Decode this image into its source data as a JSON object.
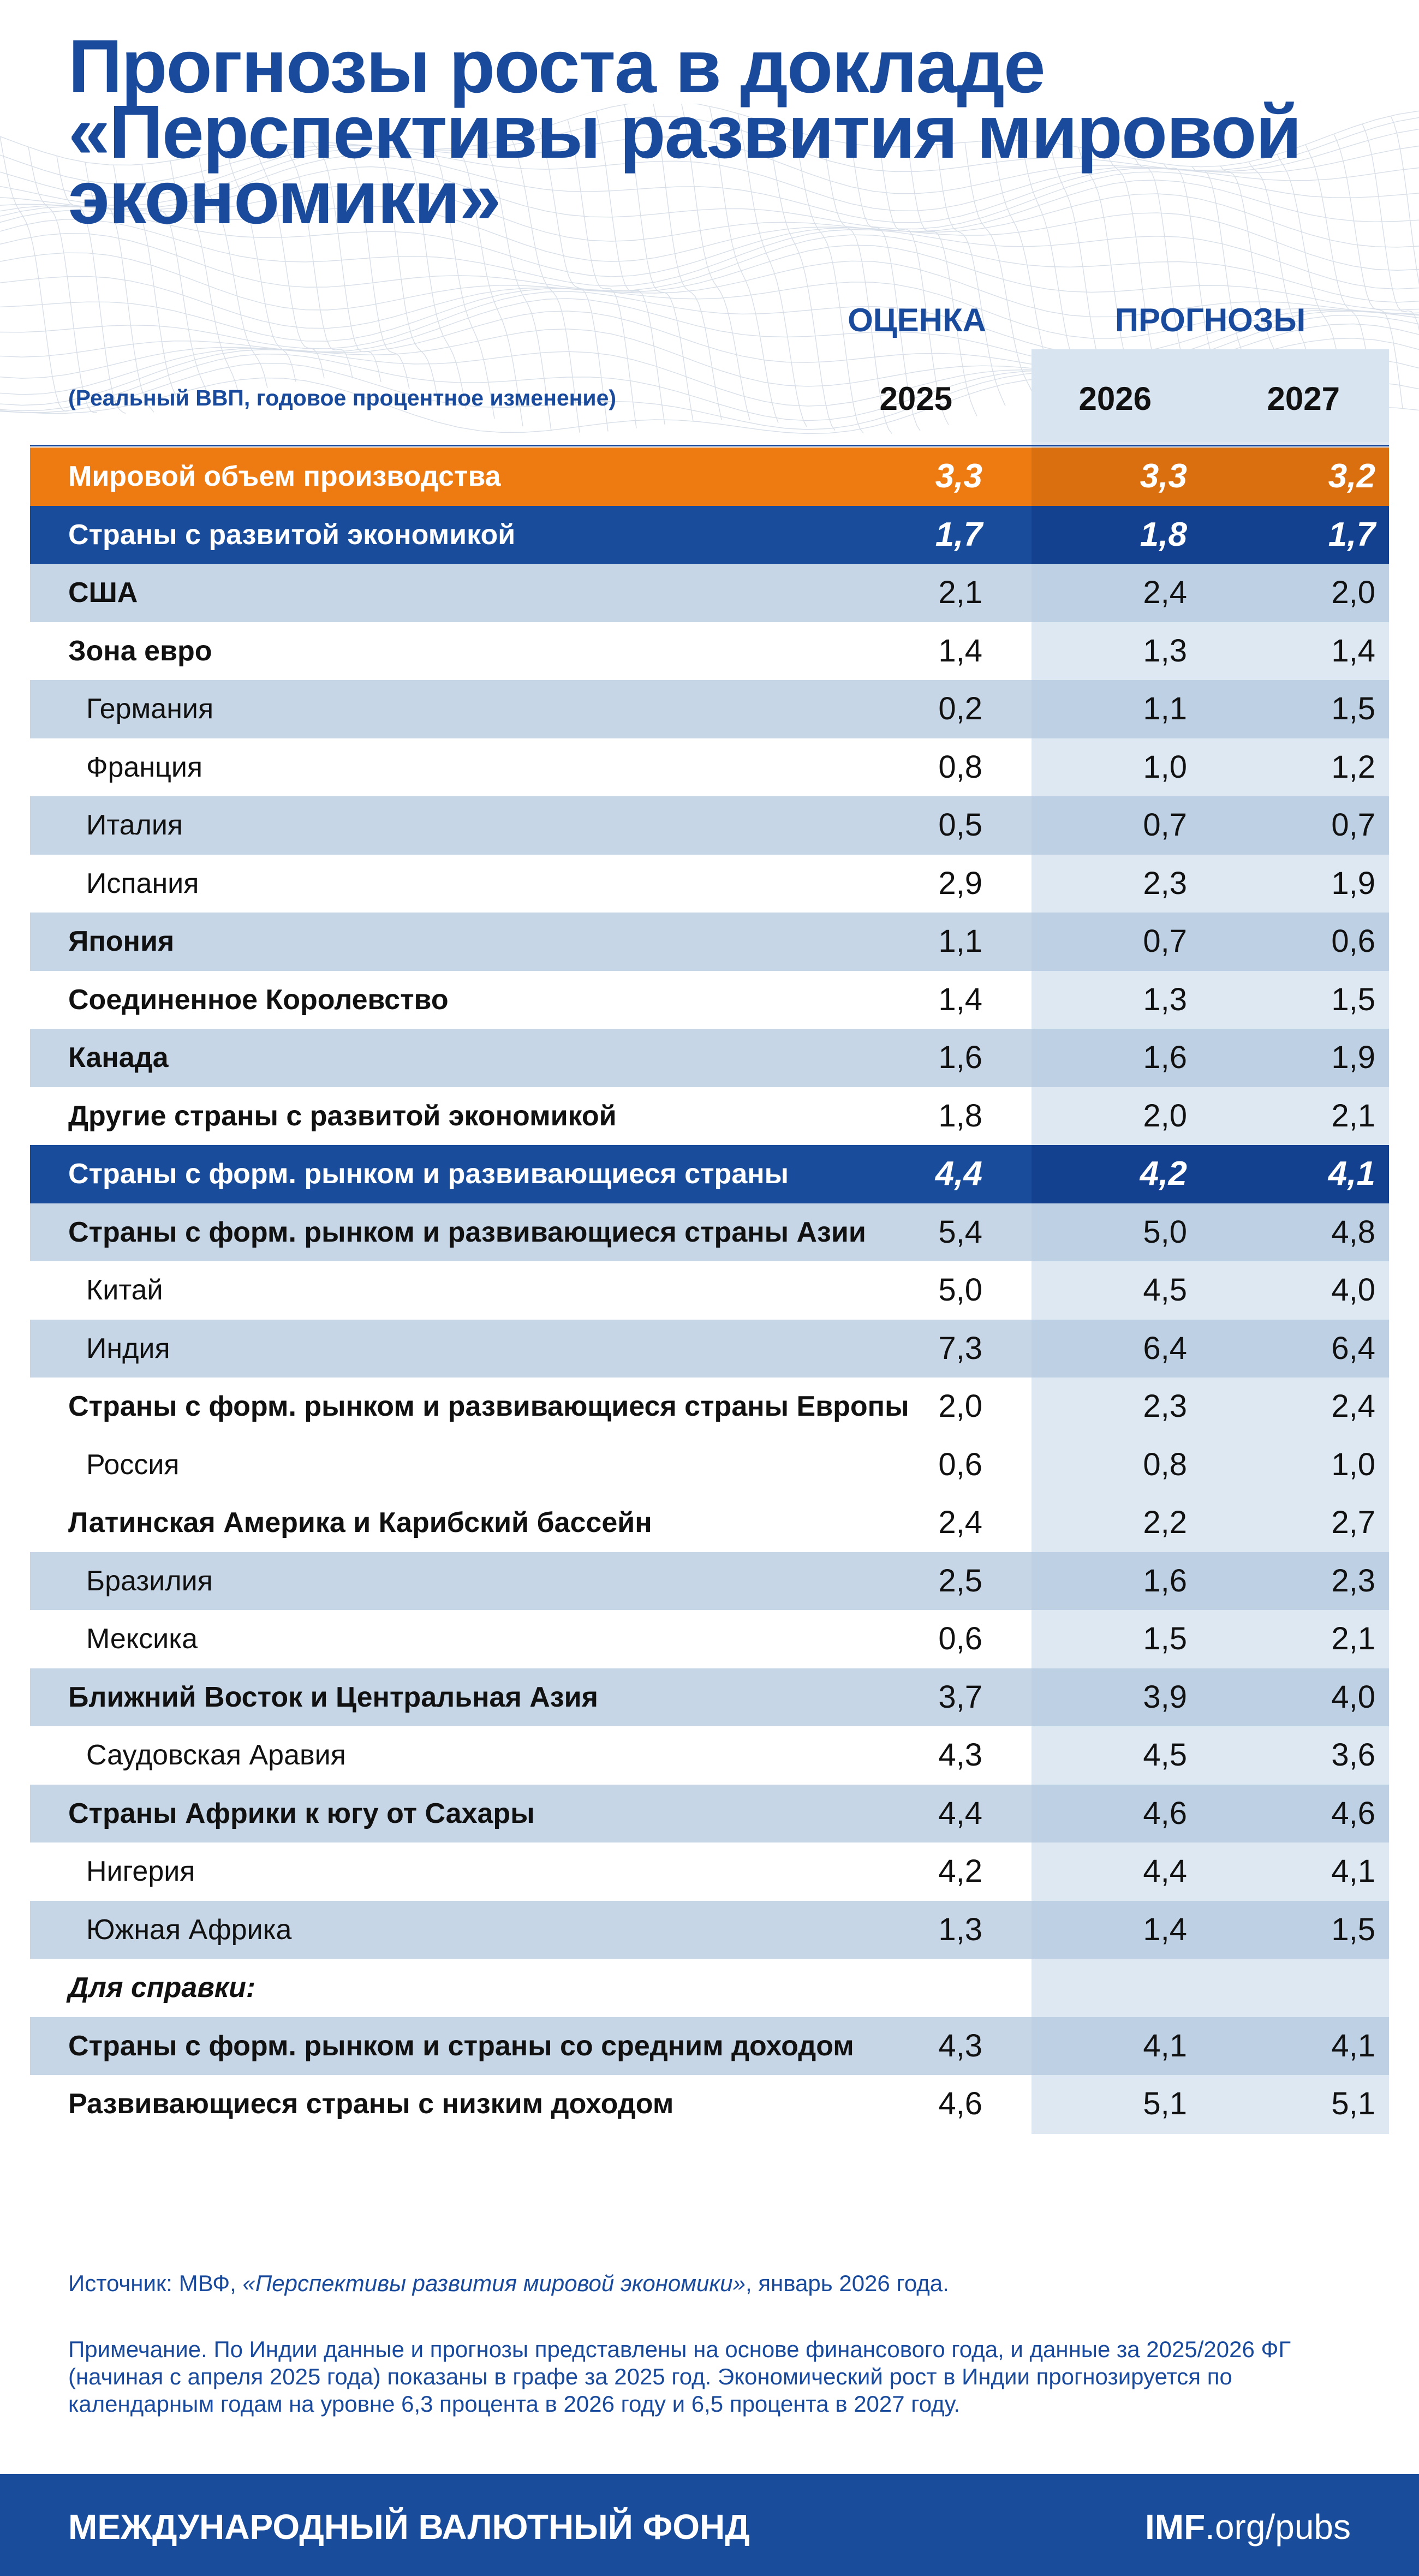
{
  "title": "Прогнозы роста в докладе «Перспективы развития мировой экономики»",
  "column_groups": {
    "estimate": "ОЦЕНКА",
    "forecast": "ПРОГНОЗЫ"
  },
  "subtitle": "(Реальный ВВП, годовое процентное изменение)",
  "years": [
    "2025",
    "2026",
    "2027"
  ],
  "rows": [
    {
      "name": "Мировой объем производства",
      "v2025": "3,3",
      "v2026": "3,3",
      "v2027": "3,2"
    },
    {
      "name": "Страны с развитой экономикой",
      "v2025": "1,7",
      "v2026": "1,8",
      "v2027": "1,7"
    },
    {
      "name": "США",
      "v2025": "2,1",
      "v2026": "2,4",
      "v2027": "2,0"
    },
    {
      "name": "Зона евро",
      "v2025": "1,4",
      "v2026": "1,3",
      "v2027": "1,4"
    },
    {
      "name": "Германия",
      "v2025": "0,2",
      "v2026": "1,1",
      "v2027": "1,5"
    },
    {
      "name": "Франция",
      "v2025": "0,8",
      "v2026": "1,0",
      "v2027": "1,2"
    },
    {
      "name": "Италия",
      "v2025": "0,5",
      "v2026": "0,7",
      "v2027": "0,7"
    },
    {
      "name": "Испания",
      "v2025": "2,9",
      "v2026": "2,3",
      "v2027": "1,9"
    },
    {
      "name": "Япония",
      "v2025": "1,1",
      "v2026": "0,7",
      "v2027": "0,6"
    },
    {
      "name": "Соединенное Королевство",
      "v2025": "1,4",
      "v2026": "1,3",
      "v2027": "1,5"
    },
    {
      "name": "Канада",
      "v2025": "1,6",
      "v2026": "1,6",
      "v2027": "1,9"
    },
    {
      "name": "Другие страны с развитой экономикой",
      "v2025": "1,8",
      "v2026": "2,0",
      "v2027": "2,1"
    },
    {
      "name": "Страны с форм. рынком и развивающиеся страны",
      "v2025": "4,4",
      "v2026": "4,2",
      "v2027": "4,1"
    },
    {
      "name": "Страны с форм. рынком и развивающиеся страны Азии",
      "v2025": "5,4",
      "v2026": "5,0",
      "v2027": "4,8"
    },
    {
      "name": "Китай",
      "v2025": "5,0",
      "v2026": "4,5",
      "v2027": "4,0"
    },
    {
      "name": "Индия",
      "v2025": "7,3",
      "v2026": "6,4",
      "v2027": "6,4"
    },
    {
      "name": "Страны с форм. рынком и развивающиеся страны Европы",
      "v2025": "2,0",
      "v2026": "2,3",
      "v2027": "2,4"
    },
    {
      "name": "Россия",
      "v2025": "0,6",
      "v2026": "0,8",
      "v2027": "1,0"
    },
    {
      "name": "Латинская Америка и Карибский бассейн",
      "v2025": "2,4",
      "v2026": "2,2",
      "v2027": "2,7"
    },
    {
      "name": "Бразилия",
      "v2025": "2,5",
      "v2026": "1,6",
      "v2027": "2,3"
    },
    {
      "name": "Мексика",
      "v2025": "0,6",
      "v2026": "1,5",
      "v2027": "2,1"
    },
    {
      "name": "Ближний Восток и Центральная Азия",
      "v2025": "3,7",
      "v2026": "3,9",
      "v2027": "4,0"
    },
    {
      "name": "Саудовская Аравия",
      "v2025": "4,3",
      "v2026": "4,5",
      "v2027": "3,6"
    },
    {
      "name": "Страны Африки к югу от Сахары",
      "v2025": "4,4",
      "v2026": "4,6",
      "v2027": "4,6"
    },
    {
      "name": "Нигерия",
      "v2025": "4,2",
      "v2026": "4,4",
      "v2027": "4,1"
    },
    {
      "name": "Южная Африка",
      "v2025": "1,3",
      "v2026": "1,4",
      "v2027": "1,5"
    },
    {
      "name": "Для справки:"
    },
    {
      "name": "Страны с форм. рынком и страны со средним доходом",
      "v2025": "4,3",
      "v2026": "4,1",
      "v2027": "4,1"
    },
    {
      "name": "Развивающиеся страны с низким доходом",
      "v2025": "4,6",
      "v2026": "5,1",
      "v2027": "5,1"
    }
  ],
  "source": {
    "prefix": "Источник: МВФ, ",
    "publication": "«Перспективы развития мировой экономики»",
    "suffix": ", январь 2026 года."
  },
  "note": "Примечание. По Индии данные и прогнозы представлены на основе финансового года, и данные за 2025/2026 ФГ (начиная с апреля 2025 года) показаны в графе за 2025 год. Экономический рост в Индии прогнозируется по календарным годам на уровне 6,3 процента в 2026 году и 6,5 процента в 2027 году.",
  "footer": {
    "org": "МЕЖДУНАРОДНЫЙ ВАЛЮТНЫЙ ФОНД",
    "url_bold": "IMF",
    "url_rest": ".org/pubs"
  },
  "colors": {
    "brand_blue": "#1a4c9c",
    "world_orange": "#ee7b11",
    "shade_blue": "#b0c6de",
    "forecast_bg": "#dde8f3"
  }
}
